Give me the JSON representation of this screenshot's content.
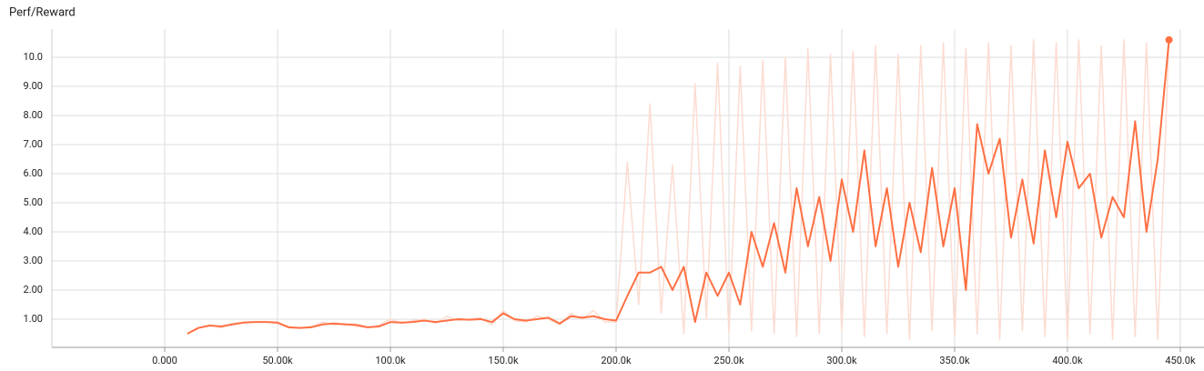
{
  "chart_data": {
    "type": "line",
    "title": "Perf/Reward",
    "xlim": [
      -50000,
      460500
    ],
    "ylim": [
      0.03,
      10.97
    ],
    "xticks": [
      {
        "value": 0,
        "label": "0.000"
      },
      {
        "value": 50000,
        "label": "50.00k"
      },
      {
        "value": 100000,
        "label": "100.0k"
      },
      {
        "value": 150000,
        "label": "150.0k"
      },
      {
        "value": 200000,
        "label": "200.0k"
      },
      {
        "value": 250000,
        "label": "250.0k"
      },
      {
        "value": 300000,
        "label": "300.0k"
      },
      {
        "value": 350000,
        "label": "350.0k"
      },
      {
        "value": 400000,
        "label": "400.0k"
      },
      {
        "value": 450000,
        "label": "450.0k"
      }
    ],
    "yticks": [
      {
        "value": 1,
        "label": "1.00"
      },
      {
        "value": 2,
        "label": "2.00"
      },
      {
        "value": 3,
        "label": "3.00"
      },
      {
        "value": 4,
        "label": "4.00"
      },
      {
        "value": 5,
        "label": "5.00"
      },
      {
        "value": 6,
        "label": "6.00"
      },
      {
        "value": 7,
        "label": "7.00"
      },
      {
        "value": 8,
        "label": "8.00"
      },
      {
        "value": 9,
        "label": "9.00"
      },
      {
        "value": 10,
        "label": "10.0"
      }
    ],
    "grid": true,
    "x": [
      10000,
      15000,
      20000,
      25000,
      30000,
      35000,
      40000,
      45000,
      50000,
      55000,
      60000,
      65000,
      70000,
      75000,
      80000,
      85000,
      90000,
      95000,
      100000,
      105000,
      110000,
      115000,
      120000,
      125000,
      130000,
      135000,
      140000,
      145000,
      150000,
      155000,
      160000,
      165000,
      170000,
      175000,
      180000,
      185000,
      190000,
      195000,
      200000,
      205000,
      210000,
      215000,
      220000,
      225000,
      230000,
      235000,
      240000,
      245000,
      250000,
      255000,
      260000,
      265000,
      270000,
      275000,
      280000,
      285000,
      290000,
      295000,
      300000,
      305000,
      310000,
      315000,
      320000,
      325000,
      330000,
      335000,
      340000,
      345000,
      350000,
      355000,
      360000,
      365000,
      370000,
      375000,
      380000,
      385000,
      390000,
      395000,
      400000,
      405000,
      410000,
      415000,
      420000,
      425000,
      430000,
      435000,
      440000,
      445000
    ],
    "series": [
      {
        "color": "#fcdcd2",
        "values": [
          0.5,
          0.7,
          0.8,
          0.7,
          0.85,
          0.9,
          0.9,
          0.9,
          0.85,
          0.7,
          0.7,
          0.75,
          0.9,
          0.8,
          0.85,
          0.75,
          0.7,
          0.8,
          1.0,
          0.85,
          0.95,
          1.0,
          0.85,
          1.1,
          0.95,
          1.0,
          1.05,
          0.8,
          1.3,
          0.95,
          0.9,
          1.1,
          1.0,
          0.8,
          1.2,
          1.0,
          1.3,
          0.9,
          0.9,
          6.4,
          1.5,
          8.4,
          1.2,
          6.3,
          0.5,
          9.1,
          1.0,
          9.8,
          0.5,
          9.7,
          0.6,
          9.9,
          0.5,
          10.0,
          0.4,
          10.3,
          0.5,
          10.1,
          0.6,
          10.2,
          0.4,
          10.4,
          0.5,
          10.1,
          0.3,
          10.4,
          0.6,
          10.5,
          0.4,
          10.3,
          0.5,
          10.5,
          0.3,
          10.4,
          0.6,
          10.6,
          0.4,
          10.5,
          0.3,
          10.6,
          0.5,
          10.4,
          0.3,
          10.6,
          0.4,
          10.5,
          0.3,
          10.6
        ]
      },
      {
        "color": "#ff7043",
        "values": [
          0.5,
          0.7,
          0.78,
          0.75,
          0.82,
          0.88,
          0.9,
          0.9,
          0.88,
          0.72,
          0.7,
          0.72,
          0.82,
          0.85,
          0.82,
          0.8,
          0.72,
          0.75,
          0.9,
          0.88,
          0.9,
          0.95,
          0.9,
          0.95,
          1.0,
          0.98,
          1.0,
          0.9,
          1.2,
          1.0,
          0.95,
          1.0,
          1.05,
          0.85,
          1.1,
          1.05,
          1.1,
          1.0,
          0.95,
          1.8,
          2.6,
          2.6,
          2.8,
          2.0,
          2.8,
          0.9,
          2.6,
          1.8,
          2.6,
          1.5,
          4.0,
          2.8,
          4.3,
          2.6,
          5.5,
          3.5,
          5.2,
          3.0,
          5.8,
          4.0,
          6.8,
          3.5,
          5.5,
          2.8,
          5.0,
          3.3,
          6.2,
          3.5,
          5.5,
          2.0,
          7.7,
          6.0,
          7.2,
          3.8,
          5.8,
          3.6,
          6.8,
          4.5,
          7.1,
          5.5,
          6.0,
          3.8,
          5.2,
          4.5,
          7.8,
          4.0,
          6.5,
          10.6
        ]
      }
    ]
  }
}
